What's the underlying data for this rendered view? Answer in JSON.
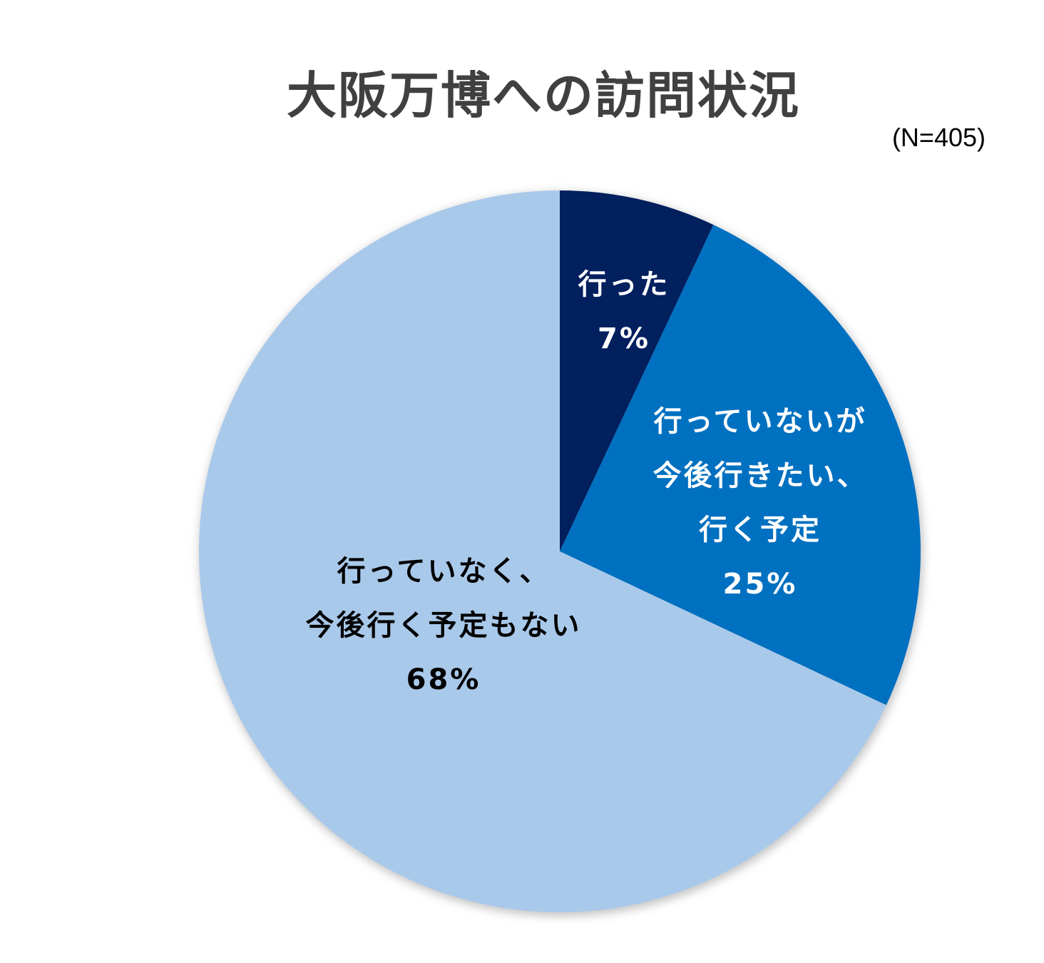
{
  "chart_data": {
    "type": "pie",
    "title": "大阪万博への訪問状況",
    "sample_size": "(N=405)",
    "start_angle": "top",
    "direction": "clockwise",
    "slices": [
      {
        "label_lines": [
          "行った"
        ],
        "value": 7,
        "value_label": "7%",
        "color": "#021f5e",
        "label_color": "#ffffff"
      },
      {
        "label_lines": [
          "行っていないが",
          "今後行きたい、",
          "行く予定"
        ],
        "value": 25,
        "value_label": "25%",
        "color": "#0070c0",
        "label_color": "#ffffff"
      },
      {
        "label_lines": [
          "行っていなく、",
          "今後行く予定もない"
        ],
        "value": 68,
        "value_label": "68%",
        "color": "#a9c9ea",
        "label_color": "#000000"
      }
    ]
  }
}
